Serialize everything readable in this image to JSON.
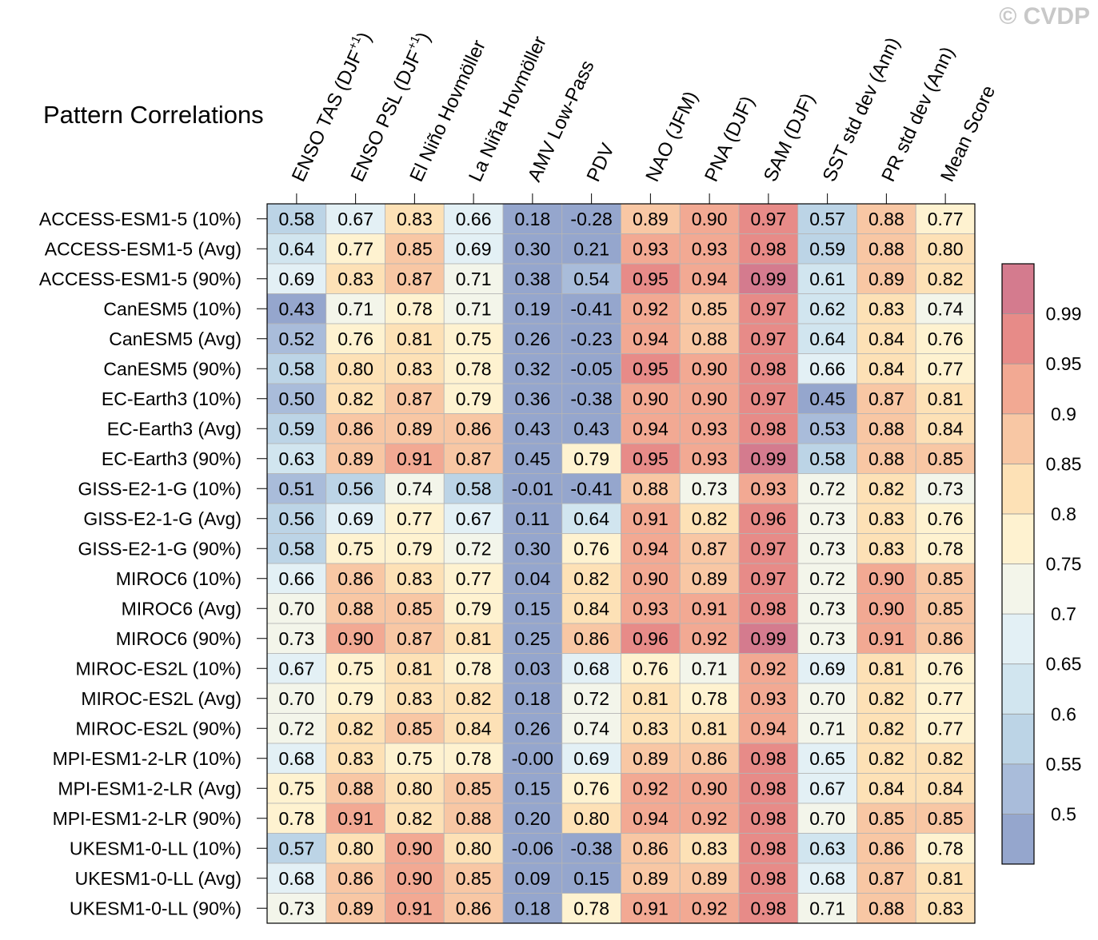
{
  "watermark": "© CVDP",
  "chart_data": {
    "type": "heatmap",
    "title": "Pattern Correlations",
    "columns": [
      {
        "label": "ENSO TAS (DJF",
        "sup": "+1",
        "tail": ")"
      },
      {
        "label": "ENSO PSL (DJF",
        "sup": "+1",
        "tail": ")"
      },
      {
        "label": "El Niño Hovmöller"
      },
      {
        "label": "La Niña Hovmöller"
      },
      {
        "label": "AMV Low-Pass"
      },
      {
        "label": "PDV"
      },
      {
        "label": "NAO (JFM)"
      },
      {
        "label": "PNA (DJF)"
      },
      {
        "label": "SAM (DJF)"
      },
      {
        "label": "SST std dev (Ann)"
      },
      {
        "label": "PR std dev (Ann)"
      },
      {
        "label": "Mean Score"
      }
    ],
    "rows": [
      "ACCESS-ESM1-5 (10%)",
      "ACCESS-ESM1-5 (Avg)",
      "ACCESS-ESM1-5 (90%)",
      "CanESM5 (10%)",
      "CanESM5 (Avg)",
      "CanESM5 (90%)",
      "EC-Earth3 (10%)",
      "EC-Earth3 (Avg)",
      "EC-Earth3 (90%)",
      "GISS-E2-1-G (10%)",
      "GISS-E2-1-G (Avg)",
      "GISS-E2-1-G (90%)",
      "MIROC6 (10%)",
      "MIROC6 (Avg)",
      "MIROC6 (90%)",
      "MIROC-ES2L (10%)",
      "MIROC-ES2L (Avg)",
      "MIROC-ES2L (90%)",
      "MPI-ESM1-2-LR (10%)",
      "MPI-ESM1-2-LR (Avg)",
      "MPI-ESM1-2-LR (90%)",
      "UKESM1-0-LL (10%)",
      "UKESM1-0-LL (Avg)",
      "UKESM1-0-LL (90%)"
    ],
    "values": [
      [
        "0.58",
        "0.67",
        "0.83",
        "0.66",
        "0.18",
        "-0.28",
        "0.89",
        "0.90",
        "0.97",
        "0.57",
        "0.88",
        "0.77"
      ],
      [
        "0.64",
        "0.77",
        "0.85",
        "0.69",
        "0.30",
        "0.21",
        "0.93",
        "0.93",
        "0.98",
        "0.59",
        "0.88",
        "0.80"
      ],
      [
        "0.69",
        "0.83",
        "0.87",
        "0.71",
        "0.38",
        "0.54",
        "0.95",
        "0.94",
        "0.99",
        "0.61",
        "0.89",
        "0.82"
      ],
      [
        "0.43",
        "0.71",
        "0.78",
        "0.71",
        "0.19",
        "-0.41",
        "0.92",
        "0.85",
        "0.97",
        "0.62",
        "0.83",
        "0.74"
      ],
      [
        "0.52",
        "0.76",
        "0.81",
        "0.75",
        "0.26",
        "-0.23",
        "0.94",
        "0.88",
        "0.97",
        "0.64",
        "0.84",
        "0.76"
      ],
      [
        "0.58",
        "0.80",
        "0.83",
        "0.78",
        "0.32",
        "-0.05",
        "0.95",
        "0.90",
        "0.98",
        "0.66",
        "0.84",
        "0.77"
      ],
      [
        "0.50",
        "0.82",
        "0.87",
        "0.79",
        "0.36",
        "-0.38",
        "0.90",
        "0.90",
        "0.97",
        "0.45",
        "0.87",
        "0.81"
      ],
      [
        "0.59",
        "0.86",
        "0.89",
        "0.86",
        "0.43",
        "0.43",
        "0.94",
        "0.93",
        "0.98",
        "0.53",
        "0.88",
        "0.84"
      ],
      [
        "0.63",
        "0.89",
        "0.91",
        "0.87",
        "0.45",
        "0.79",
        "0.95",
        "0.93",
        "0.99",
        "0.58",
        "0.88",
        "0.85"
      ],
      [
        "0.51",
        "0.56",
        "0.74",
        "0.58",
        "-0.01",
        "-0.41",
        "0.88",
        "0.73",
        "0.93",
        "0.72",
        "0.82",
        "0.73"
      ],
      [
        "0.56",
        "0.69",
        "0.77",
        "0.67",
        "0.11",
        "0.64",
        "0.91",
        "0.82",
        "0.96",
        "0.73",
        "0.83",
        "0.76"
      ],
      [
        "0.58",
        "0.75",
        "0.79",
        "0.72",
        "0.30",
        "0.76",
        "0.94",
        "0.87",
        "0.97",
        "0.73",
        "0.83",
        "0.78"
      ],
      [
        "0.66",
        "0.86",
        "0.83",
        "0.77",
        "0.04",
        "0.82",
        "0.90",
        "0.89",
        "0.97",
        "0.72",
        "0.90",
        "0.85"
      ],
      [
        "0.70",
        "0.88",
        "0.85",
        "0.79",
        "0.15",
        "0.84",
        "0.93",
        "0.91",
        "0.98",
        "0.73",
        "0.90",
        "0.85"
      ],
      [
        "0.73",
        "0.90",
        "0.87",
        "0.81",
        "0.25",
        "0.86",
        "0.96",
        "0.92",
        "0.99",
        "0.73",
        "0.91",
        "0.86"
      ],
      [
        "0.67",
        "0.75",
        "0.81",
        "0.78",
        "0.03",
        "0.68",
        "0.76",
        "0.71",
        "0.92",
        "0.69",
        "0.81",
        "0.76"
      ],
      [
        "0.70",
        "0.79",
        "0.83",
        "0.82",
        "0.18",
        "0.72",
        "0.81",
        "0.78",
        "0.93",
        "0.70",
        "0.82",
        "0.77"
      ],
      [
        "0.72",
        "0.82",
        "0.85",
        "0.84",
        "0.26",
        "0.74",
        "0.83",
        "0.81",
        "0.94",
        "0.71",
        "0.82",
        "0.77"
      ],
      [
        "0.68",
        "0.83",
        "0.75",
        "0.78",
        "-0.00",
        "0.69",
        "0.89",
        "0.86",
        "0.98",
        "0.65",
        "0.82",
        "0.82"
      ],
      [
        "0.75",
        "0.88",
        "0.80",
        "0.85",
        "0.15",
        "0.76",
        "0.92",
        "0.90",
        "0.98",
        "0.67",
        "0.84",
        "0.84"
      ],
      [
        "0.78",
        "0.91",
        "0.82",
        "0.88",
        "0.20",
        "0.80",
        "0.94",
        "0.92",
        "0.98",
        "0.70",
        "0.85",
        "0.85"
      ],
      [
        "0.57",
        "0.80",
        "0.90",
        "0.80",
        "-0.06",
        "-0.38",
        "0.86",
        "0.83",
        "0.98",
        "0.63",
        "0.86",
        "0.78"
      ],
      [
        "0.68",
        "0.86",
        "0.90",
        "0.85",
        "0.09",
        "0.15",
        "0.89",
        "0.89",
        "0.98",
        "0.68",
        "0.87",
        "0.81"
      ],
      [
        "0.73",
        "0.89",
        "0.91",
        "0.86",
        "0.18",
        "0.78",
        "0.91",
        "0.92",
        "0.98",
        "0.71",
        "0.88",
        "0.83"
      ]
    ],
    "colorbar": {
      "levels": [
        0.5,
        0.55,
        0.6,
        0.65,
        0.7,
        0.75,
        0.8,
        0.85,
        0.9,
        0.95,
        0.99
      ],
      "tick_labels": [
        "0.5",
        "0.55",
        "0.6",
        "0.65",
        "0.7",
        "0.75",
        "0.8",
        "0.85",
        "0.9",
        "0.95",
        "0.99"
      ],
      "colors": [
        "#95a6cd",
        "#a9bcda",
        "#bcd4e6",
        "#d1e5ef",
        "#e3f0f5",
        "#f3f5ea",
        "#fef2d0",
        "#fde1b6",
        "#f8c7a4",
        "#f2a993",
        "#e78b88",
        "#d47b8e"
      ]
    }
  }
}
